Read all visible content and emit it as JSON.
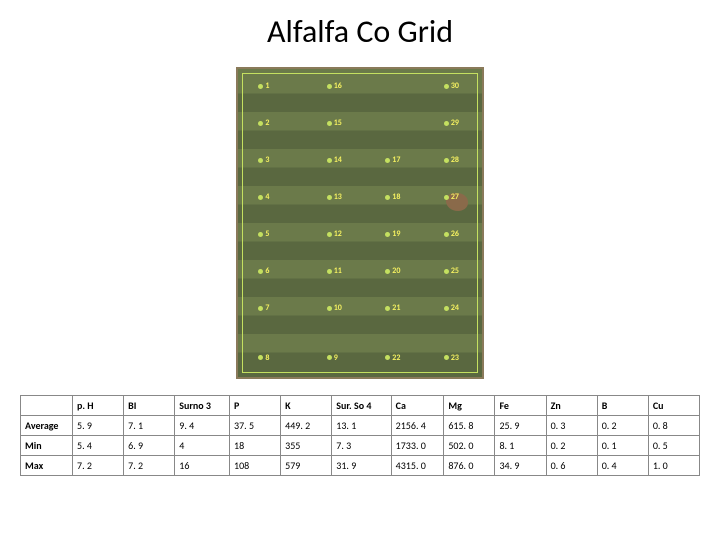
{
  "title": "Alfalfa Co Grid",
  "field_map": {
    "background_stripe_colors": [
      "#6b7a4a",
      "#5a6840"
    ],
    "border_color": "#8a7a5a",
    "grid_line_color": "#c4e060",
    "point_color": "#c4e060",
    "label_color": "#f4f060",
    "point_label_fontsize": 8,
    "points": [
      {
        "id": "1",
        "col": 0,
        "row": 0
      },
      {
        "id": "16",
        "col": 1,
        "row": 0
      },
      {
        "id": "30",
        "col": 3,
        "row": 0
      },
      {
        "id": "2",
        "col": 0,
        "row": 1
      },
      {
        "id": "15",
        "col": 1,
        "row": 1
      },
      {
        "id": "29",
        "col": 3,
        "row": 1
      },
      {
        "id": "3",
        "col": 0,
        "row": 2
      },
      {
        "id": "14",
        "col": 1,
        "row": 2
      },
      {
        "id": "17",
        "col": 2,
        "row": 2
      },
      {
        "id": "28",
        "col": 3,
        "row": 2
      },
      {
        "id": "4",
        "col": 0,
        "row": 3
      },
      {
        "id": "13",
        "col": 1,
        "row": 3
      },
      {
        "id": "18",
        "col": 2,
        "row": 3
      },
      {
        "id": "27",
        "col": 3,
        "row": 3
      },
      {
        "id": "5",
        "col": 0,
        "row": 4
      },
      {
        "id": "12",
        "col": 1,
        "row": 4
      },
      {
        "id": "19",
        "col": 2,
        "row": 4
      },
      {
        "id": "26",
        "col": 3,
        "row": 4
      },
      {
        "id": "6",
        "col": 0,
        "row": 5
      },
      {
        "id": "11",
        "col": 1,
        "row": 5
      },
      {
        "id": "20",
        "col": 2,
        "row": 5
      },
      {
        "id": "25",
        "col": 3,
        "row": 5
      },
      {
        "id": "7",
        "col": 0,
        "row": 6
      },
      {
        "id": "10",
        "col": 1,
        "row": 6
      },
      {
        "id": "21",
        "col": 2,
        "row": 6
      },
      {
        "id": "24",
        "col": 3,
        "row": 6
      },
      {
        "id": "8",
        "col": 0,
        "row": 7
      },
      {
        "id": "9",
        "col": 1,
        "row": 7
      },
      {
        "id": "22",
        "col": 2,
        "row": 7
      },
      {
        "id": "23",
        "col": 3,
        "row": 7
      }
    ],
    "col_positions_pct": [
      10,
      38,
      62,
      86
    ],
    "row_positions_pct": [
      6,
      18,
      30,
      42,
      54,
      66,
      78,
      94
    ]
  },
  "table": {
    "columns": [
      "p. H",
      "BI",
      "Surno 3",
      "P",
      "K",
      "Sur. So 4",
      "Ca",
      "Mg",
      "Fe",
      "Zn",
      "B",
      "Cu"
    ],
    "rows": [
      {
        "label": "Average",
        "values": [
          "5. 9",
          "7. 1",
          "9. 4",
          "37. 5",
          "449. 2",
          "13. 1",
          "2156. 4",
          "615. 8",
          "25. 9",
          "0. 3",
          "0. 2",
          "0. 8"
        ]
      },
      {
        "label": "Min",
        "values": [
          "5. 4",
          "6. 9",
          "4",
          "18",
          "355",
          "7. 3",
          "1733. 0",
          "502. 0",
          "8. 1",
          "0. 2",
          "0. 1",
          "0. 5"
        ]
      },
      {
        "label": "Max",
        "values": [
          "7. 2",
          "7. 2",
          "16",
          "108",
          "579",
          "31. 9",
          "4315. 0",
          "876. 0",
          "34. 9",
          "0. 6",
          "0. 4",
          "1. 0"
        ]
      }
    ],
    "border_color": "#888888",
    "font_size": 10,
    "header_font_weight": "bold"
  }
}
